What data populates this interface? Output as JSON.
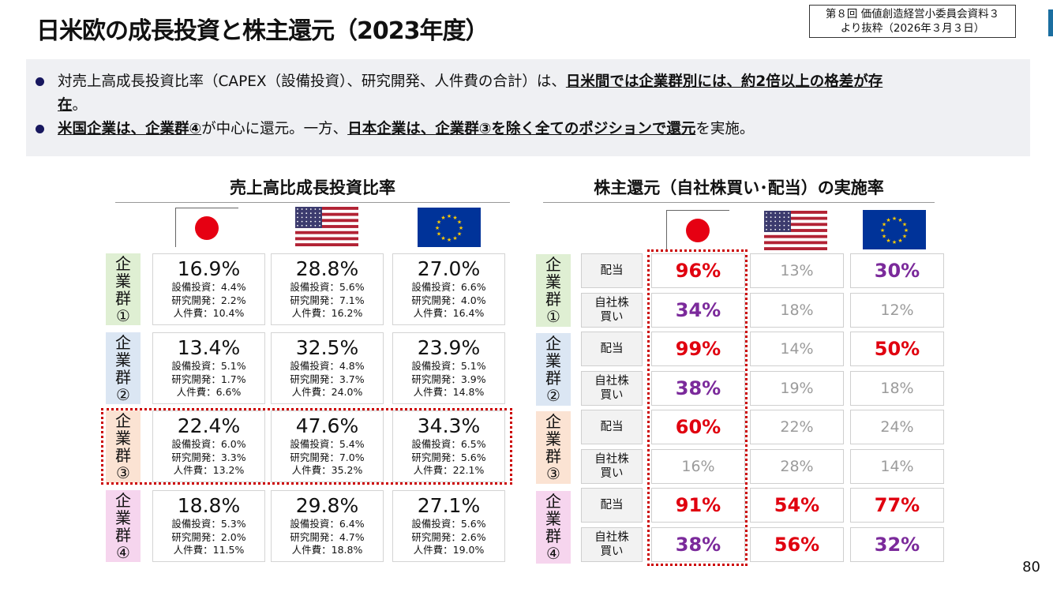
{
  "title": "日米欧の成長投資と株主還元（2023年度）",
  "source": [
    "第８回 価値創造経営小委員会資料３",
    "より抜粋（2026年３月３日）"
  ],
  "summary": {
    "b1": [
      "対売上高成長投資比率（CAPEX（設備投資）、研究開発、人件費の合計）は、",
      "日米間では企業群別には、約2倍以上の格差が存",
      "在",
      "。"
    ],
    "b2": [
      "米国企業は、企業群④",
      "が中心に還元。一方、",
      "日本企業は、企業群③を除く全てのポジションで還元",
      "を実施。"
    ]
  },
  "left_title": "売上高比成長投資比率",
  "right_title": "株主還元（自社株買い･配当）の実施率",
  "groups": [
    "企\n業\n群\n①",
    "企\n業\n群\n②",
    "企\n業\n群\n③",
    "企\n業\n群\n④"
  ],
  "flags": [
    "japan-flag",
    "us-flag",
    "eu-flag"
  ],
  "colors": {
    "red": "#e0000f",
    "purple": "#7b2a9b",
    "jp": "#e60012",
    "us_blue": "#3c3b6e",
    "us_red": "#b22234",
    "eu": "#003399",
    "eu_star": "#ffcc00"
  },
  "left": [
    [
      {
        "p": "16.9%",
        "a": "設備投資：4.4%",
        "b": "研究開発：2.2%",
        "c": "人件費：10.4%"
      },
      {
        "p": "28.8%",
        "a": "設備投資：5.6%",
        "b": "研究開発：7.1%",
        "c": "人件費：16.2%"
      },
      {
        "p": "27.0%",
        "a": "設備投資：6.6%",
        "b": "研究開発：4.0%",
        "c": "人件費：16.4%"
      }
    ],
    [
      {
        "p": "13.4%",
        "a": "設備投資：5.1%",
        "b": "研究開発：1.7%",
        "c": "人件費：6.6%"
      },
      {
        "p": "32.5%",
        "a": "設備投資：4.8%",
        "b": "研究開発：3.7%",
        "c": "人件費：24.0%"
      },
      {
        "p": "23.9%",
        "a": "設備投資：5.1%",
        "b": "研究開発：3.9%",
        "c": "人件費：14.8%"
      }
    ],
    [
      {
        "p": "22.4%",
        "a": "設備投資：6.0%",
        "b": "研究開発：3.3%",
        "c": "人件費：13.2%"
      },
      {
        "p": "47.6%",
        "a": "設備投資：5.4%",
        "b": "研究開発：7.0%",
        "c": "人件費：35.2%"
      },
      {
        "p": "34.3%",
        "a": "設備投資：6.5%",
        "b": "研究開発：5.6%",
        "c": "人件費：22.1%"
      }
    ],
    [
      {
        "p": "18.8%",
        "a": "設備投資：5.3%",
        "b": "研究開発：2.0%",
        "c": "人件費：11.5%"
      },
      {
        "p": "29.8%",
        "a": "設備投資：6.4%",
        "b": "研究開発：4.7%",
        "c": "人件費：18.8%"
      },
      {
        "p": "27.1%",
        "a": "設備投資：5.6%",
        "b": "研究開発：2.6%",
        "c": "人件費：19.0%"
      }
    ]
  ],
  "right_labels": [
    "配当",
    "自社株\n買い"
  ],
  "right": [
    [
      [
        "96%",
        "red"
      ],
      [
        "13%",
        "gray"
      ],
      [
        "30%",
        "purple"
      ]
    ],
    [
      [
        "34%",
        "purple"
      ],
      [
        "18%",
        "gray"
      ],
      [
        "12%",
        "gray"
      ]
    ],
    [
      [
        "99%",
        "red"
      ],
      [
        "14%",
        "gray"
      ],
      [
        "50%",
        "red"
      ]
    ],
    [
      [
        "38%",
        "purple"
      ],
      [
        "19%",
        "gray"
      ],
      [
        "18%",
        "gray"
      ]
    ],
    [
      [
        "60%",
        "red"
      ],
      [
        "22%",
        "gray"
      ],
      [
        "24%",
        "gray"
      ]
    ],
    [
      [
        "16%",
        "gray"
      ],
      [
        "28%",
        "gray"
      ],
      [
        "14%",
        "gray"
      ]
    ],
    [
      [
        "91%",
        "red"
      ],
      [
        "54%",
        "red"
      ],
      [
        "77%",
        "red"
      ]
    ],
    [
      [
        "38%",
        "purple"
      ],
      [
        "56%",
        "red"
      ],
      [
        "32%",
        "purple"
      ]
    ]
  ],
  "page": "80"
}
